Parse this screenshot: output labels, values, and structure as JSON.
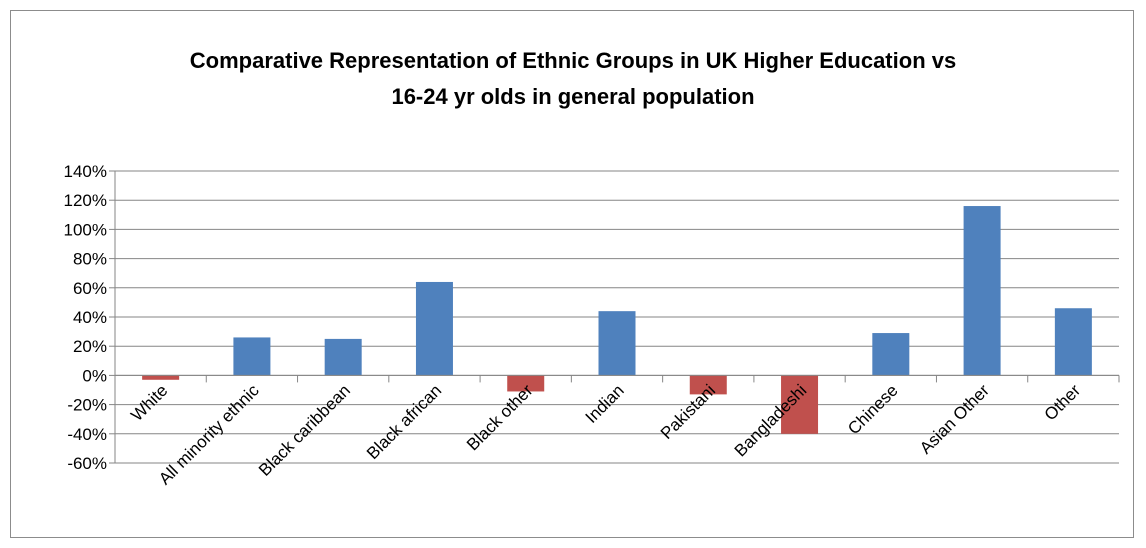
{
  "chart_data": {
    "type": "bar",
    "title_lines": [
      "Comparative Representation of Ethnic Groups in UK Higher Education vs",
      "16-24 yr olds in general population"
    ],
    "xlabel": "",
    "ylabel": "",
    "categories": [
      "White",
      "All minority ethnic",
      "Black caribbean",
      "Black african",
      "Black other",
      "Indian",
      "Pakistani",
      "Bangladeshi",
      "Chinese",
      "Asian Other",
      "Other"
    ],
    "values": [
      -3,
      26,
      25,
      64,
      -11,
      44,
      -13,
      -40,
      29,
      116,
      46
    ],
    "ylim": [
      -60,
      140
    ],
    "yticks": [
      -60,
      -40,
      -20,
      0,
      20,
      40,
      60,
      80,
      100,
      120,
      140
    ],
    "ytick_labels": [
      "-60%",
      "-40%",
      "-20%",
      "0%",
      "20%",
      "40%",
      "60%",
      "80%",
      "100%",
      "120%",
      "140%"
    ],
    "grid": true,
    "legend": "none",
    "colors": {
      "positive": "#4f81bd",
      "negative": "#c0504d",
      "grid": "#868686",
      "axis": "#868686"
    }
  }
}
